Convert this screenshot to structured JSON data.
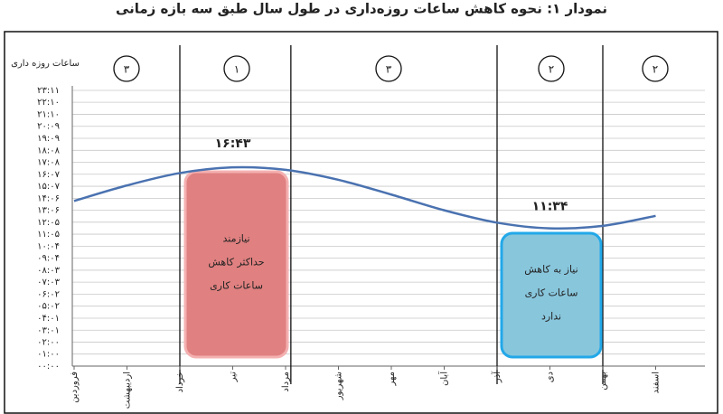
{
  "chart_data": {
    "type": "line",
    "title": "نمودار ۱: نحوه کاهش ساعات روزه‌داری در طول سال طبق سه بازه زمانی",
    "y_label": "ساعات روزه داری",
    "categories": [
      "فروردین",
      "اردیبهشت",
      "خرداد",
      "تیر",
      "مرداد",
      "شهریور",
      "مهر",
      "آبان",
      "آذر",
      "دی",
      "بهمن",
      "اسفند"
    ],
    "series": [
      {
        "name": "ساعات روزه داری",
        "color": "#4a72b0",
        "values": [
          13.88,
          15.19,
          16.23,
          16.71,
          16.5,
          15.66,
          14.42,
          13.1,
          12.06,
          11.58,
          11.79,
          12.63
        ]
      }
    ],
    "ylim": [
      0,
      23.18
    ],
    "yticks": [
      {
        "value": 0,
        "label": "۰۰:۰۰"
      },
      {
        "value": 1.01,
        "label": "۰۱:۰۰"
      },
      {
        "value": 2.02,
        "label": "۰۲:۰۰"
      },
      {
        "value": 3.02,
        "label": "۰۳:۰۱"
      },
      {
        "value": 4.03,
        "label": "۰۴:۰۱"
      },
      {
        "value": 5.04,
        "label": "۰۵:۰۲"
      },
      {
        "value": 6.05,
        "label": "۰۶:۰۲"
      },
      {
        "value": 7.06,
        "label": "۰۷:۰۳"
      },
      {
        "value": 8.06,
        "label": "۰۸:۰۳"
      },
      {
        "value": 9.07,
        "label": "۰۹:۰۴"
      },
      {
        "value": 10.08,
        "label": "۱۰:۰۴"
      },
      {
        "value": 11.09,
        "label": "۱۱:۰۵"
      },
      {
        "value": 12.1,
        "label": "۱۲:۰۵"
      },
      {
        "value": 13.1,
        "label": "۱۳:۰۶"
      },
      {
        "value": 14.11,
        "label": "۱۴:۰۶"
      },
      {
        "value": 15.12,
        "label": "۱۵:۰۷"
      },
      {
        "value": 16.13,
        "label": "۱۶:۰۷"
      },
      {
        "value": 17.14,
        "label": "۱۷:۰۸"
      },
      {
        "value": 18.14,
        "label": "۱۸:۰۸"
      },
      {
        "value": 19.15,
        "label": "۱۹:۰۹"
      },
      {
        "value": 20.16,
        "label": "۲۰:۰۹"
      },
      {
        "value": 21.17,
        "label": "۲۱:۱۰"
      },
      {
        "value": 22.18,
        "label": "۲۲:۱۰"
      },
      {
        "value": 23.18,
        "label": "۲۳:۱۱"
      }
    ],
    "grid": true,
    "max_label": "۱۶:۴۳",
    "min_label": "۱۱:۳۴",
    "periods": [
      "۳",
      "۱",
      "۳",
      "۲",
      "۲"
    ],
    "box_max": [
      "نیازمند",
      "حداکثر کاهش",
      "ساعات کاری"
    ],
    "box_min": [
      "نیاز به کاهش",
      "ساعات کاری",
      "ندارد"
    ]
  }
}
